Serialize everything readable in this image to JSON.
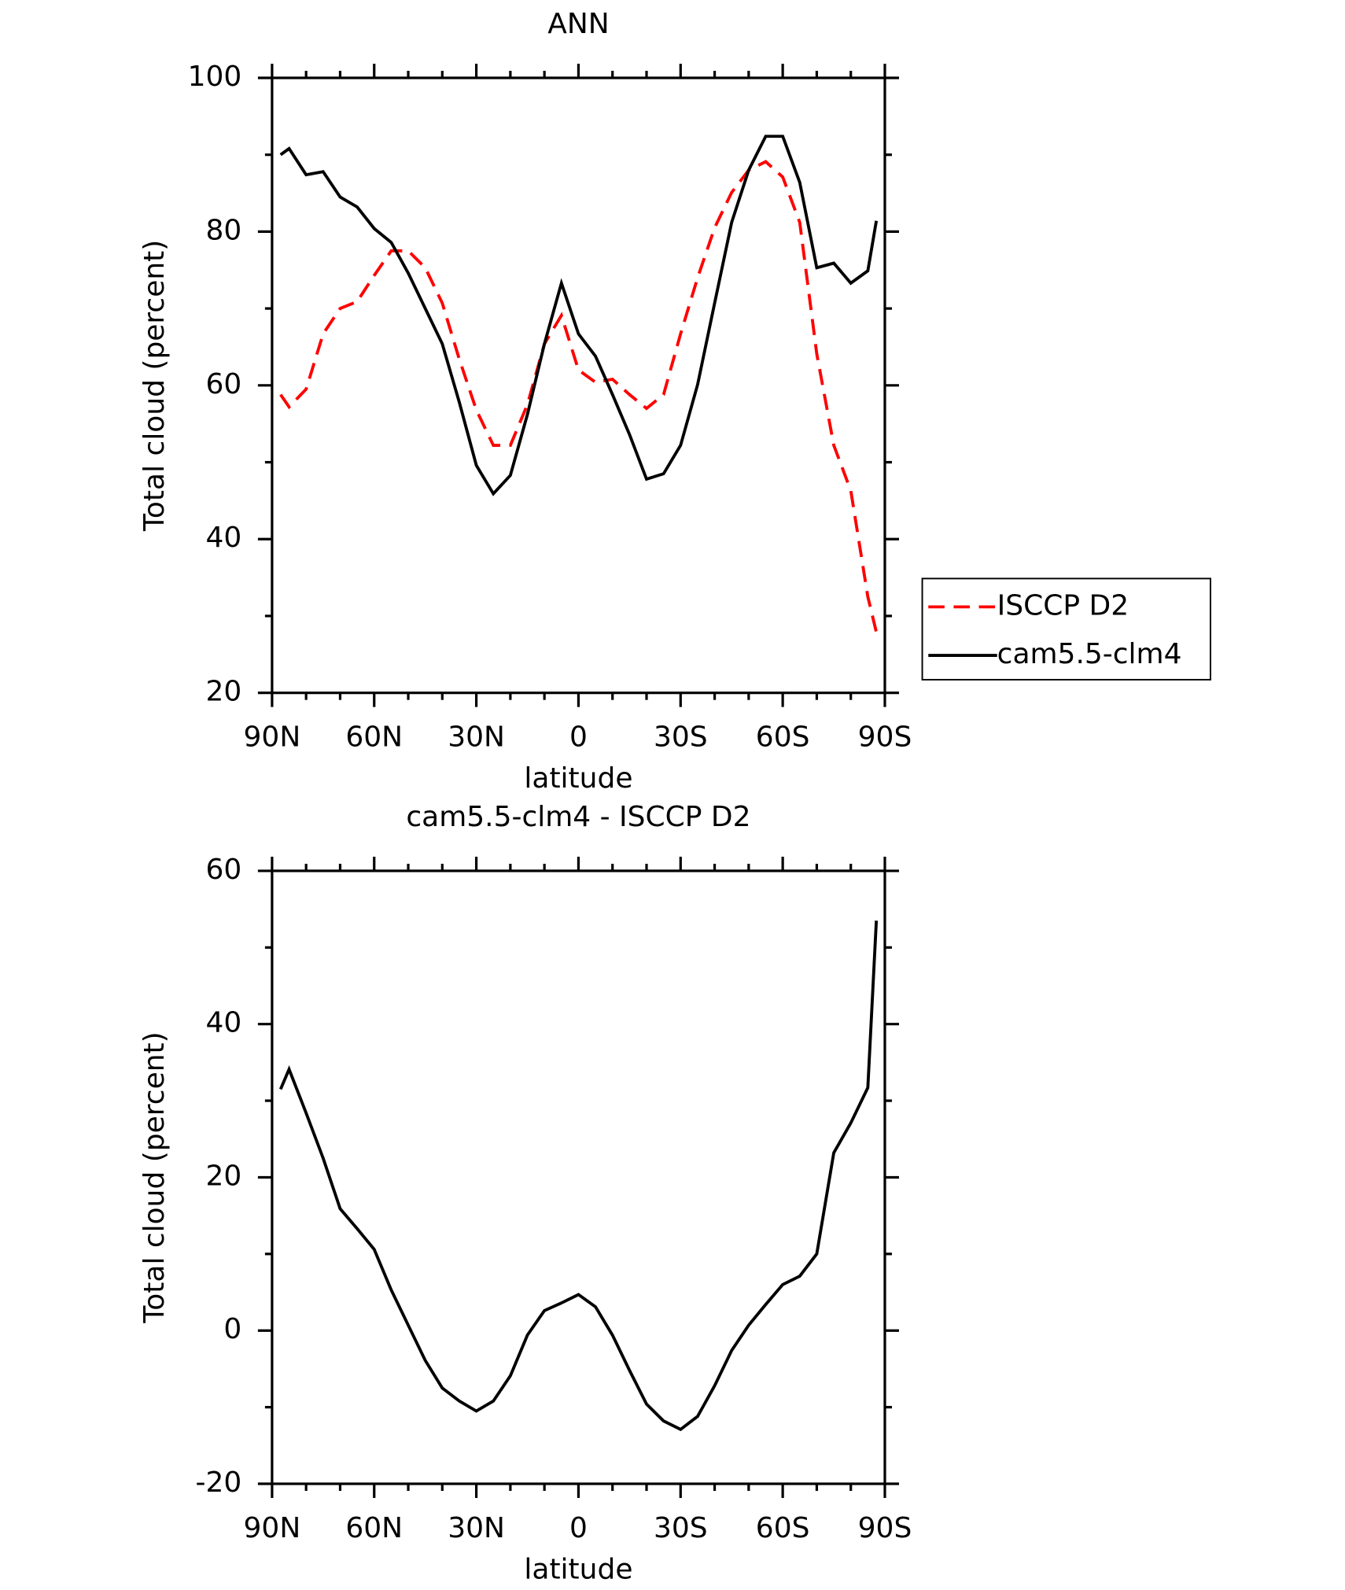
{
  "chart_data": [
    {
      "type": "line",
      "title": "ANN",
      "xlabel": "latitude",
      "ylabel": "Total cloud (percent)",
      "x": [
        87.5,
        85,
        80,
        75,
        70,
        65,
        60,
        55,
        50,
        45,
        40,
        35,
        30,
        25,
        20,
        15,
        10,
        5,
        0,
        -5,
        -10,
        -15,
        -20,
        -25,
        -30,
        -35,
        -40,
        -45,
        -50,
        -55,
        -60,
        -65,
        -70,
        -75,
        -80,
        -85,
        -87.5
      ],
      "series": [
        {
          "name": "ISCCP D2",
          "color": "#ff0000",
          "linestyle": "dashed",
          "values": [
            58.8,
            57.2,
            59.5,
            66.7,
            70,
            70.9,
            74.3,
            77.5,
            77.5,
            75.3,
            70.7,
            63.4,
            56.8,
            52.2,
            52.2,
            57.5,
            65.4,
            69.1,
            62,
            60.4,
            60.8,
            58.8,
            57,
            58.8,
            66.7,
            74,
            80.5,
            85.1,
            88,
            89.1,
            87.1,
            81.2,
            64.1,
            52.2,
            46.3,
            32.5,
            27.9
          ]
        },
        {
          "name": "cam5.5-clm4",
          "color": "#000000",
          "linestyle": "solid",
          "values": [
            90,
            90.8,
            87.4,
            87.8,
            84.5,
            83.2,
            80.4,
            78.6,
            74.6,
            70,
            65.4,
            57.8,
            49.6,
            45.9,
            48.3,
            56.2,
            65.4,
            73.3,
            66.7,
            63.8,
            58.8,
            53.6,
            47.8,
            48.5,
            52.2,
            60.1,
            70.7,
            81.2,
            88,
            92.4,
            92.4,
            86.4,
            75.3,
            75.9,
            73.3,
            74.9,
            81.4
          ]
        }
      ],
      "xlim": [
        90,
        -90
      ],
      "xticks": [
        {
          "value": 90,
          "label": "90N"
        },
        {
          "value": 60,
          "label": "60N"
        },
        {
          "value": 30,
          "label": "30N"
        },
        0,
        {
          "value": -30,
          "label": "30S"
        },
        {
          "value": -60,
          "label": "60S"
        },
        {
          "value": -90,
          "label": "90S"
        }
      ],
      "ylim": [
        20,
        100
      ],
      "yticks": [
        20,
        40,
        60,
        80,
        100
      ],
      "legend": "right"
    },
    {
      "type": "line",
      "title": "cam5.5-clm4 - ISCCP D2",
      "xlabel": "latitude",
      "ylabel": "Total cloud (percent)",
      "x": [
        87.5,
        85,
        80,
        75,
        70,
        65,
        60,
        55,
        50,
        45,
        40,
        35,
        30,
        25,
        20,
        15,
        10,
        5,
        0,
        -5,
        -10,
        -15,
        -20,
        -25,
        -30,
        -35,
        -40,
        -45,
        -50,
        -55,
        -60,
        -65,
        -70,
        -75,
        -80,
        -85,
        -87.5
      ],
      "series": [
        {
          "color": "#000000",
          "linestyle": "solid",
          "values": [
            31.5,
            34.1,
            28.4,
            22.5,
            15.9,
            13.3,
            10.6,
            5.3,
            0.7,
            -3.9,
            -7.5,
            -9.2,
            -10.5,
            -9.2,
            -5.9,
            -0.6,
            2.6,
            3.6,
            4.7,
            3.1,
            -0.6,
            -5.2,
            -9.6,
            -11.8,
            -12.9,
            -11.2,
            -7.2,
            -2.6,
            0.7,
            3.4,
            6,
            7.1,
            10,
            23.2,
            27.1,
            31.7,
            53.5
          ]
        }
      ],
      "xlim": [
        90,
        -90
      ],
      "xticks": [
        {
          "value": 90,
          "label": "90N"
        },
        {
          "value": 60,
          "label": "60N"
        },
        {
          "value": 30,
          "label": "30N"
        },
        0,
        {
          "value": -30,
          "label": "30S"
        },
        {
          "value": -60,
          "label": "60S"
        },
        {
          "value": -90,
          "label": "90S"
        }
      ],
      "ylim": [
        -20,
        60
      ],
      "yticks": [
        -20,
        0,
        20,
        40,
        60
      ]
    }
  ]
}
